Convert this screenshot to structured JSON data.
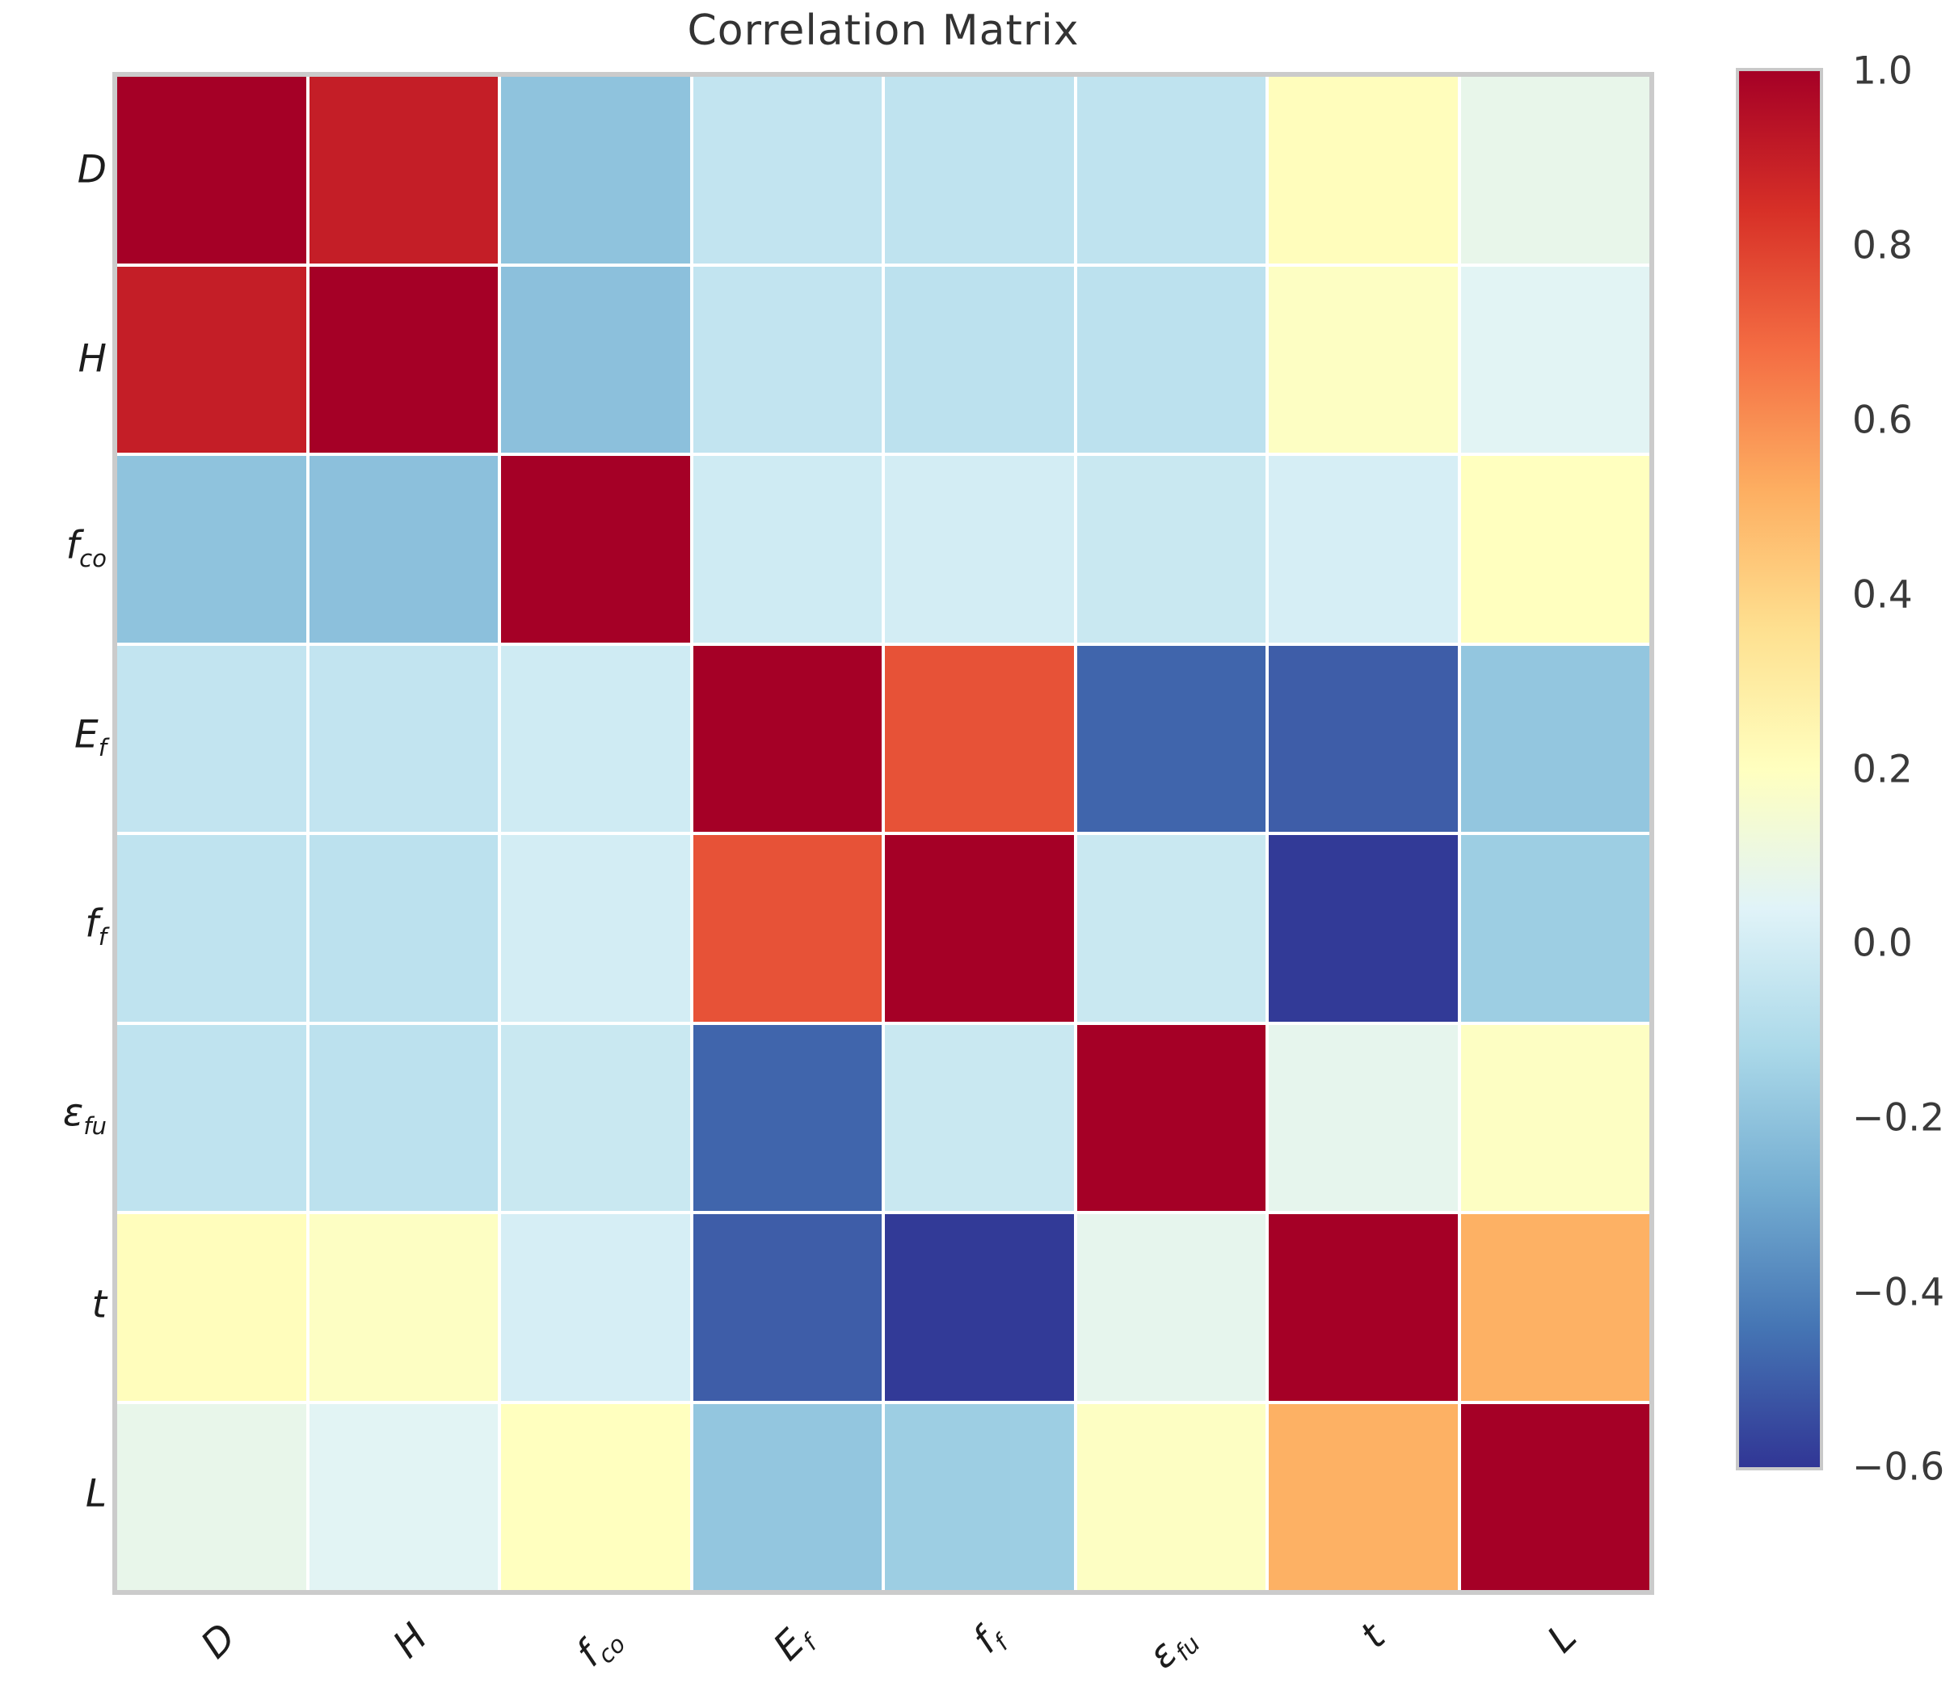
{
  "title": "Correlation Matrix",
  "chart_data": {
    "type": "heatmap",
    "variables": [
      {
        "main": "D",
        "sub": ""
      },
      {
        "main": "H",
        "sub": ""
      },
      {
        "main": "f",
        "sub": "co"
      },
      {
        "main": "E",
        "sub": "f"
      },
      {
        "main": "f",
        "sub": "f"
      },
      {
        "main": "ε",
        "sub": "fu"
      },
      {
        "main": "t",
        "sub": ""
      },
      {
        "main": "L",
        "sub": ""
      }
    ],
    "matrix": [
      [
        1.0,
        0.9,
        -0.2,
        -0.05,
        -0.06,
        -0.06,
        0.21,
        0.08
      ],
      [
        0.9,
        1.0,
        -0.21,
        -0.05,
        -0.07,
        -0.07,
        0.19,
        0.05
      ],
      [
        -0.2,
        -0.21,
        1.0,
        -0.01,
        0.0,
        -0.03,
        0.01,
        0.2
      ],
      [
        -0.05,
        -0.05,
        -0.01,
        1.0,
        0.75,
        -0.48,
        -0.5,
        -0.19
      ],
      [
        -0.06,
        -0.07,
        0.0,
        0.75,
        1.0,
        -0.03,
        -0.59,
        -0.16
      ],
      [
        -0.06,
        -0.07,
        -0.03,
        -0.48,
        -0.03,
        1.0,
        0.07,
        0.19
      ],
      [
        0.21,
        0.19,
        0.01,
        -0.5,
        -0.59,
        0.07,
        1.0,
        0.51
      ],
      [
        0.08,
        0.05,
        0.2,
        -0.19,
        -0.16,
        0.19,
        0.51,
        1.0
      ]
    ],
    "vmin": -0.6,
    "vmax": 1.0,
    "colormap": "RdYlBu_r",
    "colormap_anchors": [
      "#313695",
      "#4575b4",
      "#74add1",
      "#abd9e9",
      "#e0f3f8",
      "#ffffbf",
      "#fee090",
      "#fdae61",
      "#f46d43",
      "#d73027",
      "#a50026"
    ],
    "colorbar_ticks": [
      "1.0",
      "0.8",
      "0.6",
      "0.4",
      "0.2",
      "0.0",
      "−0.2",
      "−0.4",
      "−0.6"
    ],
    "x_label_rotation_deg": 45,
    "grid_lines": "white",
    "legend_position": "right-colorbar"
  }
}
